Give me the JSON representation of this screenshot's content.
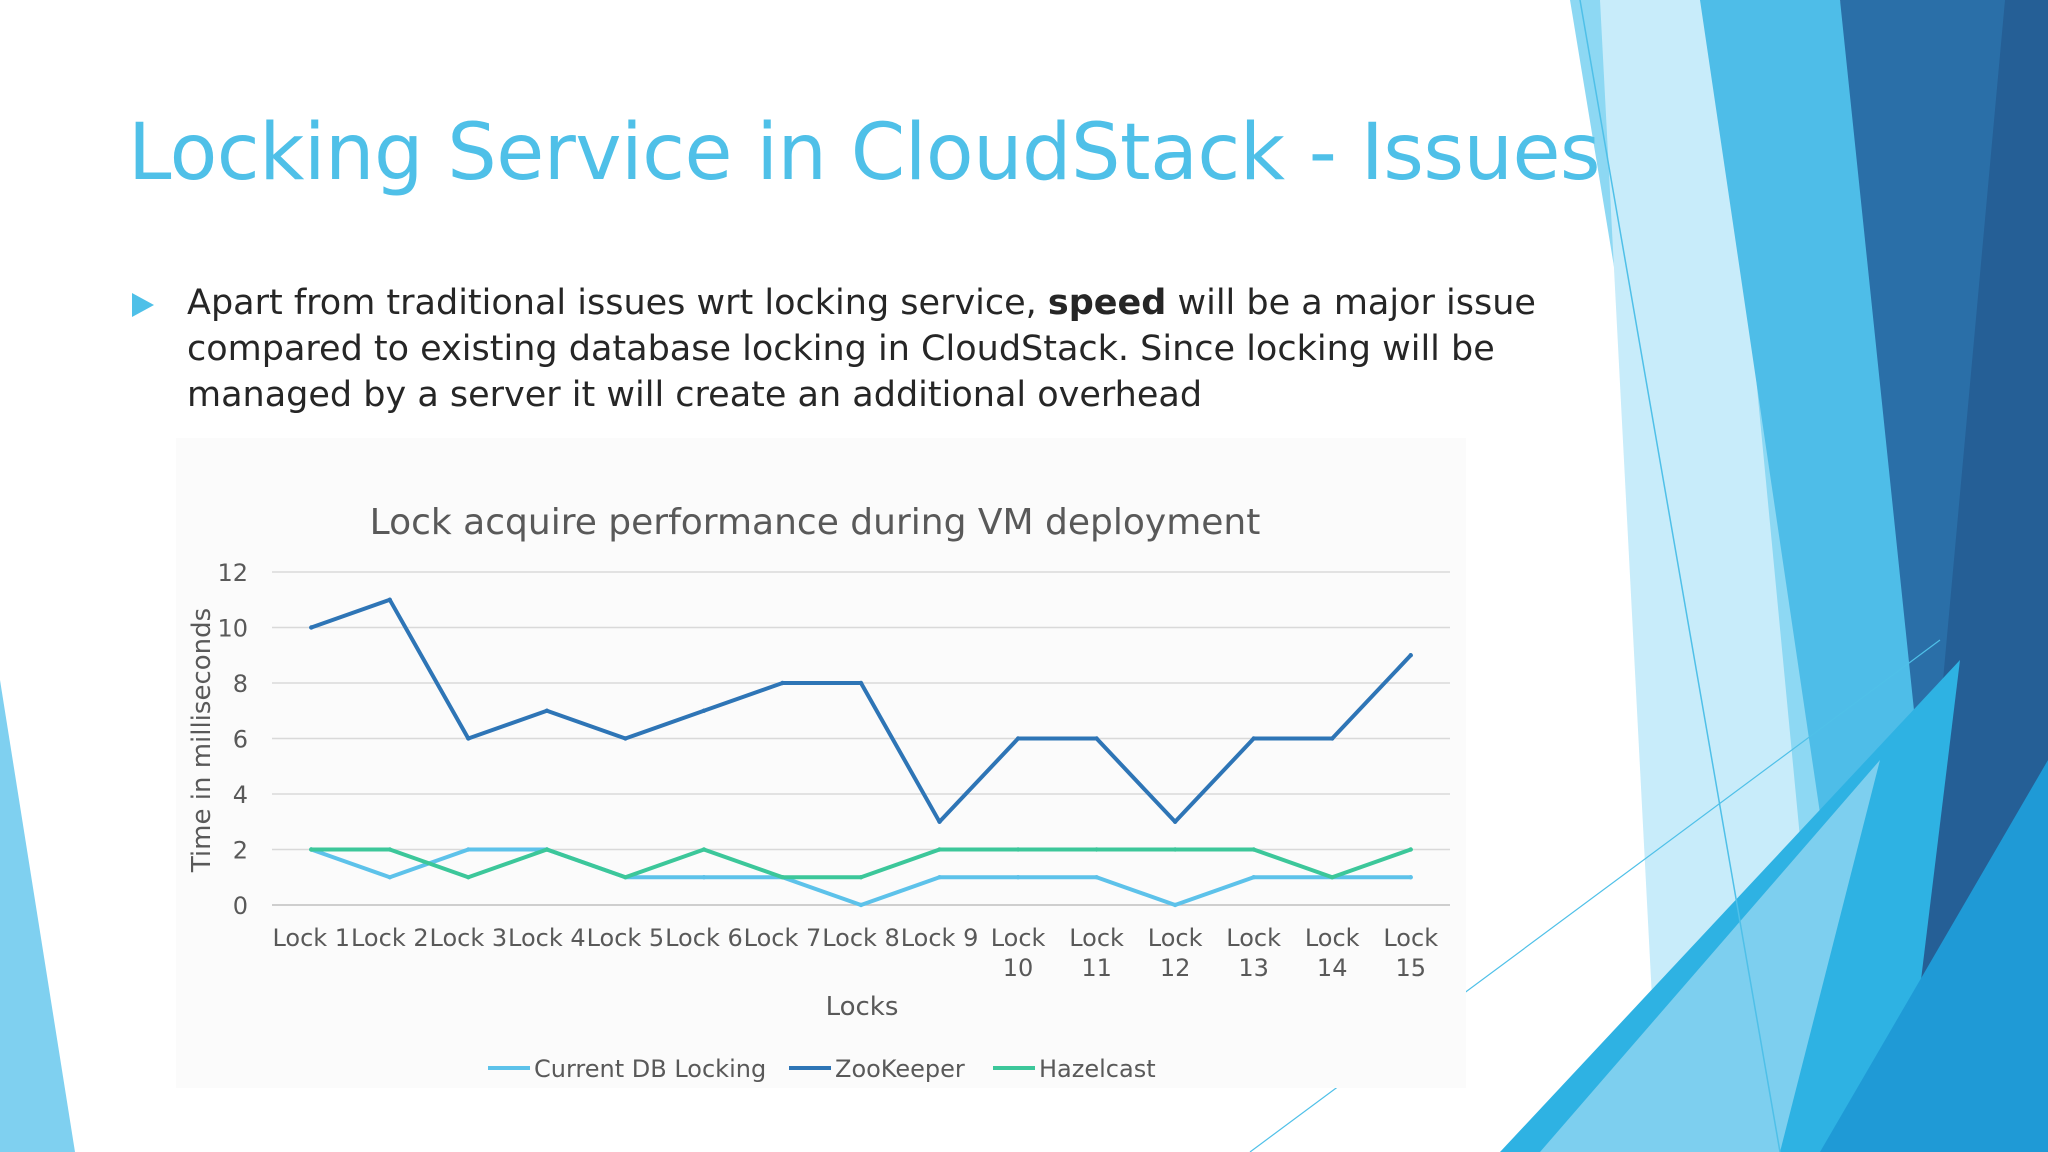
{
  "slide": {
    "title": "Locking Service in CloudStack - Issues",
    "bullet": {
      "text_before": "Apart from traditional issues wrt locking service, ",
      "bold_text": "speed",
      "text_after": " will be a major issue compared to existing database locking in CloudStack. Since locking will be managed by a server it will create an additional overhead"
    }
  },
  "colors": {
    "accent": "#4fc0e8",
    "current_db": "#5dc2ea",
    "zookeeper": "#2e75b6",
    "hazelcast": "#3cc79a"
  },
  "chart_data": {
    "type": "line",
    "title": "Lock acquire performance during VM deployment",
    "xlabel": "Locks",
    "ylabel": "Time in milliseconds",
    "ylim": [
      0,
      12
    ],
    "yticks": [
      0,
      2,
      4,
      6,
      8,
      10,
      12
    ],
    "grid": true,
    "legend": "bottom",
    "categories": [
      "Lock 1",
      "Lock 2",
      "Lock 3",
      "Lock 4",
      "Lock 5",
      "Lock 6",
      "Lock 7",
      "Lock 8",
      "Lock 9",
      "Lock 10",
      "Lock 11",
      "Lock 12",
      "Lock 13",
      "Lock 14",
      "Lock 15"
    ],
    "series": [
      {
        "name": "Current DB Locking",
        "color": "#5dc2ea",
        "values": [
          2,
          1,
          2,
          2,
          1,
          1,
          1,
          0,
          1,
          1,
          1,
          0,
          1,
          1,
          1
        ]
      },
      {
        "name": "ZooKeeper",
        "color": "#2e75b6",
        "values": [
          10,
          11,
          6,
          7,
          6,
          7,
          8,
          8,
          3,
          6,
          6,
          3,
          6,
          6,
          9
        ]
      },
      {
        "name": "Hazelcast",
        "color": "#3cc79a",
        "values": [
          2,
          2,
          1,
          2,
          1,
          2,
          1,
          1,
          2,
          2,
          2,
          2,
          2,
          1,
          2
        ]
      }
    ]
  }
}
